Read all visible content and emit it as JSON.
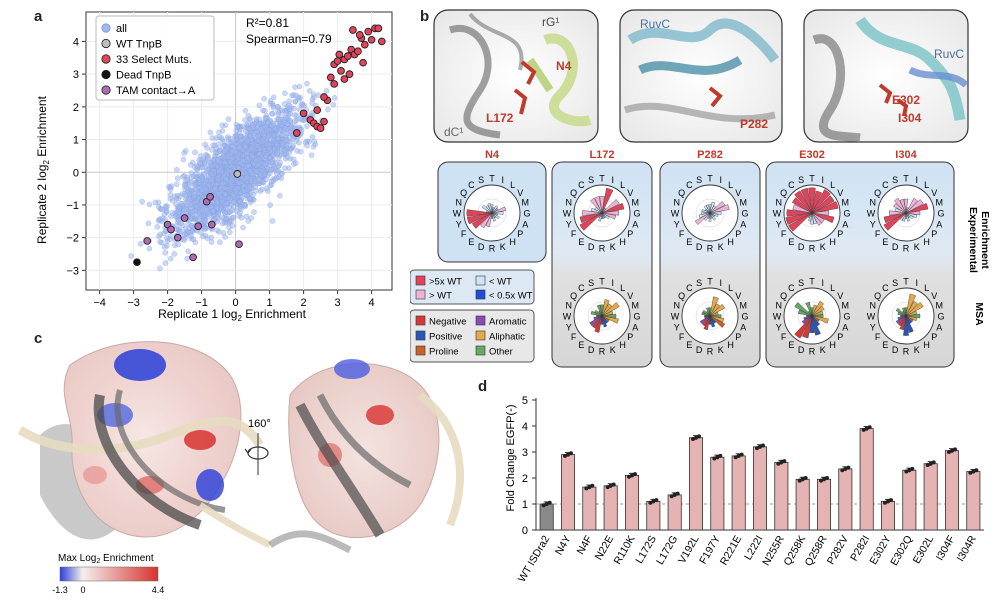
{
  "panel_labels": {
    "a": "a",
    "b": "b",
    "c": "c",
    "d": "d"
  },
  "chart_data": [
    {
      "type": "scatter",
      "panel": "a",
      "xlabel_base": "Replicate 1 log",
      "xlabel_sub": "2",
      "xlabel_tail": " Enrichment",
      "ylabel_base": "Replicate 2 log",
      "ylabel_sub": "2",
      "ylabel_tail": " Enrichment",
      "xlim": [
        -4.4,
        4.6
      ],
      "ylim": [
        -3.6,
        4.9
      ],
      "xticks": [
        -4,
        -3,
        -2,
        -1,
        0,
        1,
        2,
        3,
        4
      ],
      "yticks": [
        -3,
        -2,
        -1,
        0,
        1,
        2,
        3,
        4
      ],
      "xtick_labels": [
        "−4",
        "−3",
        "−2",
        "−1",
        "0",
        "1",
        "2",
        "3",
        "4"
      ],
      "ytick_labels": [
        "−3",
        "−2",
        "−1",
        "0",
        "1",
        "2",
        "3",
        "4"
      ],
      "annotation_r2": "R²=0.81",
      "annotation_spearman": "Spearman=0.79",
      "legend": [
        {
          "name": "all",
          "color": "#9fb7ef"
        },
        {
          "name": "WT TnpB",
          "color": "#bdbdbd"
        },
        {
          "name": "33 Select Muts.",
          "color": "#e0445a"
        },
        {
          "name": "Dead TnpB",
          "color": "#111111"
        },
        {
          "name": "TAM contact→A",
          "color": "#b06ab3"
        }
      ],
      "cloud_center": [
        0,
        0
      ],
      "cloud_count": 2200,
      "series": [
        {
          "name": "WT TnpB",
          "color": "#bdbdbd",
          "points": [
            [
              0.05,
              -0.05
            ]
          ]
        },
        {
          "name": "Dead TnpB",
          "color": "#111111",
          "points": [
            [
              -2.9,
              -2.75
            ]
          ]
        },
        {
          "name": "TAM contact→A",
          "color": "#b06ab3",
          "points": [
            [
              -2.6,
              -2.1
            ],
            [
              -2.0,
              -1.6
            ],
            [
              -1.9,
              -1.75
            ],
            [
              -1.7,
              -2.0
            ],
            [
              -1.5,
              -1.4
            ],
            [
              -1.1,
              -1.65
            ],
            [
              -0.85,
              -0.9
            ],
            [
              -0.75,
              -0.75
            ],
            [
              -1.25,
              -2.6
            ],
            [
              0.1,
              -2.2
            ],
            [
              -0.7,
              -1.6
            ]
          ]
        },
        {
          "name": "33 Select Muts.",
          "color": "#e0445a",
          "points": [
            [
              1.8,
              1.2
            ],
            [
              2.0,
              1.8
            ],
            [
              2.2,
              1.6
            ],
            [
              2.3,
              1.5
            ],
            [
              2.4,
              1.4
            ],
            [
              2.5,
              1.35
            ],
            [
              2.6,
              1.55
            ],
            [
              2.7,
              2.2
            ],
            [
              2.8,
              2.9
            ],
            [
              2.9,
              3.3
            ],
            [
              3.0,
              3.4
            ],
            [
              3.1,
              3.1
            ],
            [
              3.2,
              3.45
            ],
            [
              3.3,
              3.55
            ],
            [
              3.35,
              3.0
            ],
            [
              3.4,
              3.75
            ],
            [
              3.5,
              3.6
            ],
            [
              3.6,
              3.7
            ],
            [
              3.7,
              4.1
            ],
            [
              3.8,
              3.9
            ],
            [
              3.9,
              4.3
            ],
            [
              4.0,
              4.05
            ],
            [
              4.1,
              4.4
            ],
            [
              4.3,
              4.0
            ],
            [
              3.45,
              4.35
            ],
            [
              3.2,
              2.85
            ],
            [
              2.9,
              2.7
            ],
            [
              2.6,
              2.3
            ],
            [
              3.65,
              4.2
            ],
            [
              4.2,
              4.4
            ],
            [
              2.4,
              1.9
            ],
            [
              3.05,
              3.6
            ],
            [
              3.75,
              3.35
            ]
          ]
        }
      ]
    },
    {
      "type": "bar",
      "panel": "d",
      "ylabel": "Fold Change EGFP(-)",
      "ylim": [
        0,
        5
      ],
      "yticks": [
        0,
        1,
        2,
        3,
        4,
        5
      ],
      "reference_line": 1,
      "categories": [
        "WT ISDra2",
        "N4Y",
        "N4F",
        "N22E",
        "R110K",
        "L172S",
        "L172G",
        "V192L",
        "F197Y",
        "R221E",
        "L222I",
        "N255R",
        "Q258K",
        "Q258R",
        "P282V",
        "P282I",
        "E302Y",
        "E302Q",
        "E302L",
        "I304F",
        "I304R"
      ],
      "values": [
        1.0,
        2.9,
        1.65,
        1.7,
        2.1,
        1.1,
        1.35,
        3.55,
        2.8,
        2.85,
        3.2,
        2.6,
        1.95,
        1.95,
        2.35,
        3.9,
        1.1,
        2.3,
        2.55,
        3.05,
        2.25
      ],
      "colors": {
        "wt": "#8a8a8a",
        "mut": "#e6b3b3"
      }
    }
  ],
  "panel_b": {
    "structure_labels": {
      "rG1": "rG¹",
      "dC1": "dC¹",
      "n4": "N4",
      "l172": "L172",
      "ruvc1": "RuvC",
      "p282": "P282",
      "ruvc2": "RuvC",
      "e302": "E302",
      "i304": "I304"
    },
    "residue_titles": [
      "N4",
      "L172",
      "P282",
      "E302",
      "I304"
    ],
    "amino_acids": [
      "T",
      "I",
      "L",
      "V",
      "M",
      "G",
      "A",
      "P",
      "H",
      "K",
      "R",
      "D",
      "E",
      "F",
      "Y",
      "W",
      "N",
      "Q",
      "C",
      "S"
    ],
    "radial_exp": {
      "N4": [
        0.3,
        0.2,
        0.3,
        0.25,
        0.5,
        0.4,
        0.2,
        0.3,
        0.2,
        0.3,
        0.2,
        0.5,
        0.6,
        0.8,
        0.9,
        0.9,
        0.2,
        0.4,
        0.3,
        0.35
      ],
      "L172": [
        0.6,
        0.9,
        0.2,
        0.7,
        0.8,
        0.6,
        0.5,
        0.3,
        0.2,
        0.2,
        0.2,
        0.3,
        0.2,
        0.9,
        0.8,
        0.7,
        0.4,
        0.3,
        0.6,
        0.6
      ],
      "P282": [
        0.3,
        0.4,
        0.3,
        0.6,
        0.7,
        0.4,
        0.3,
        0.2,
        0.3,
        0.2,
        0.3,
        0.2,
        0.3,
        0.6,
        0.4,
        0.3,
        0.3,
        0.2,
        0.3,
        0.3
      ],
      "E302": [
        0.9,
        0.8,
        0.95,
        0.9,
        0.95,
        0.6,
        0.8,
        0.5,
        0.5,
        0.4,
        0.4,
        0.3,
        0.2,
        0.95,
        0.95,
        0.9,
        0.7,
        0.8,
        0.9,
        0.9
      ],
      "I304": [
        0.5,
        0.2,
        0.6,
        0.7,
        0.8,
        0.5,
        0.4,
        0.3,
        0.2,
        0.3,
        0.2,
        0.3,
        0.3,
        0.9,
        0.8,
        0.6,
        0.4,
        0.5,
        0.6,
        0.5
      ]
    },
    "radial_msa": {
      "L172": [
        0.4,
        0.6,
        0.5,
        0.7,
        0.4,
        0.5,
        0.6,
        0.3,
        0.3,
        0.4,
        0.3,
        0.6,
        0.5,
        0.5,
        0.3,
        0.2,
        0.4,
        0.3,
        0.2,
        0.4
      ],
      "P282": [
        0.3,
        0.7,
        0.5,
        0.6,
        0.3,
        0.4,
        0.5,
        0.6,
        0.3,
        0.4,
        0.3,
        0.5,
        0.4,
        0.4,
        0.2,
        0.2,
        0.3,
        0.3,
        0.2,
        0.3
      ],
      "E302": [
        0.3,
        0.4,
        0.6,
        0.5,
        0.4,
        0.4,
        0.6,
        0.3,
        0.4,
        0.7,
        0.6,
        0.8,
        0.9,
        0.4,
        0.3,
        0.2,
        0.5,
        0.7,
        0.2,
        0.5
      ],
      "I304": [
        0.3,
        0.8,
        0.6,
        0.7,
        0.4,
        0.5,
        0.4,
        0.3,
        0.3,
        0.6,
        0.7,
        0.5,
        0.4,
        0.4,
        0.3,
        0.2,
        0.3,
        0.4,
        0.2,
        0.3
      ]
    },
    "row_labels": {
      "exp_line1": "Experimental",
      "exp_line2": "Enrichment",
      "msa": "MSA"
    },
    "legend1": [
      {
        "name": ">5x WT",
        "color": "#e0445a"
      },
      {
        "name": "< WT",
        "color": "#cfe4f7"
      },
      {
        "name": "> WT",
        "color": "#efb3d8"
      },
      {
        "name": "< 0.5x WT",
        "color": "#1f4fd6"
      }
    ],
    "legend2": [
      {
        "name": "Negative",
        "color": "#d23a3a"
      },
      {
        "name": "Aromatic",
        "color": "#8a4bb3"
      },
      {
        "name": "Positive",
        "color": "#2a56b8"
      },
      {
        "name": "Aliphatic",
        "color": "#e3a94a"
      },
      {
        "name": "Proline",
        "color": "#c8612b"
      },
      {
        "name": "Other",
        "color": "#66a865"
      }
    ]
  },
  "panel_c": {
    "rotation_label": "160°",
    "colorbar_title_base": "Max Log",
    "colorbar_title_sub": "2",
    "colorbar_title_tail": " Enrichment",
    "colorbar_ticks": [
      "-1.3",
      "0",
      "4.4"
    ],
    "colors": {
      "low": "#2b3fd8",
      "mid": "#f4f0ee",
      "high": "#d7322f"
    }
  }
}
